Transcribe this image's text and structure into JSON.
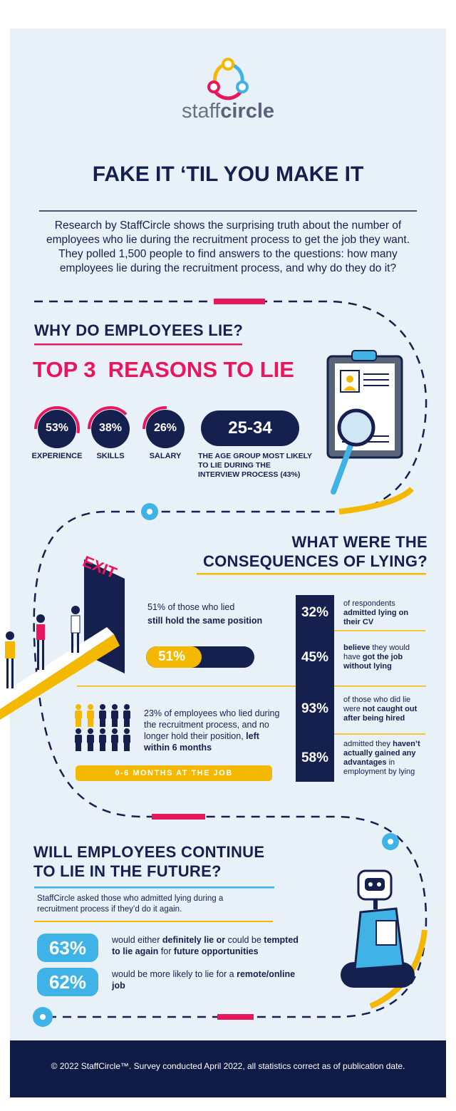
{
  "header": {
    "logo_light": "staff",
    "logo_bold": "circle",
    "title": "FAKE IT ‘TIL YOU MAKE IT",
    "intro": "Research by StaffCircle shows the surprising truth about the number of employees who lie during the recruitment process to get the job they want. They polled 1,500 people to find answers to the questions: how many employees lie during the recruitment process, and why do they do it?"
  },
  "why": {
    "heading": "WHY DO EMPLOYEES LIE?",
    "subheading": "TOP 3  REASONS TO LIE",
    "reasons": [
      {
        "value": 53,
        "label": "53%",
        "name": "EXPERIENCE"
      },
      {
        "value": 38,
        "label": "38%",
        "name": "SKILLS"
      },
      {
        "value": 26,
        "label": "26%",
        "name": "SALARY"
      }
    ],
    "age": {
      "range": "25-34",
      "text": "THE AGE GROUP MOST LIKELY TO LIE DURING THE INTERVIEW PROCESS (43%)"
    }
  },
  "consequences": {
    "heading_line1": "WHAT WERE THE",
    "heading_line2": "CONSEQUENCES OF LYING?",
    "exit": "EXIT",
    "still_hold": {
      "text": "51% of those who lied",
      "bold": "still hold the same position",
      "bar": {
        "value": 51,
        "label": "51%"
      }
    },
    "left_job": {
      "parts": [
        {
          "text": "23% of employees who lied during the recruitment process, and no longer hold their position, ",
          "bold": false
        },
        {
          "text": "left within 6 months",
          "bold": true
        }
      ],
      "banner": "0-6 MONTHS AT THE JOB"
    },
    "stats": [
      {
        "label": "32%",
        "parts": [
          {
            "text": "of respondents ",
            "bold": false
          },
          {
            "text": "admitted lying on their CV",
            "bold": true
          }
        ]
      },
      {
        "label": "45%",
        "parts": [
          {
            "text": "believe ",
            "bold": true
          },
          {
            "text": "they would have ",
            "bold": false
          },
          {
            "text": "got the job without lying",
            "bold": true
          }
        ]
      },
      {
        "label": "93%",
        "parts": [
          {
            "text": "of those who did lie were ",
            "bold": false
          },
          {
            "text": "not caught out after being hired",
            "bold": true
          }
        ]
      },
      {
        "label": "58%",
        "parts": [
          {
            "text": "admitted they ",
            "bold": false
          },
          {
            "text": "haven’t actually gained any advantages ",
            "bold": true
          },
          {
            "text": "in employment by lying",
            "bold": false
          }
        ]
      }
    ]
  },
  "future": {
    "heading_line1": "WILL EMPLOYEES CONTINUE",
    "heading_line2": "TO LIE IN THE FUTURE?",
    "intro": "StaffCircle asked those who admitted lying during a recruitment process if they’d do it again.",
    "items": [
      {
        "label": "63%",
        "parts": [
          {
            "text": "would either ",
            "bold": false
          },
          {
            "text": "definitely lie or ",
            "bold": true
          },
          {
            "text": "could be ",
            "bold": false
          },
          {
            "text": "tempted to lie again ",
            "bold": true
          },
          {
            "text": "for ",
            "bold": false
          },
          {
            "text": "future opportunities",
            "bold": true
          }
        ]
      },
      {
        "label": "62%",
        "parts": [
          {
            "text": "would be more likely to lie for a ",
            "bold": false
          },
          {
            "text": "remote/online job",
            "bold": true
          }
        ]
      }
    ]
  },
  "footer": "© 2022 StaffCircle™. Survey conducted April 2022, all statistics correct as of publication date."
}
